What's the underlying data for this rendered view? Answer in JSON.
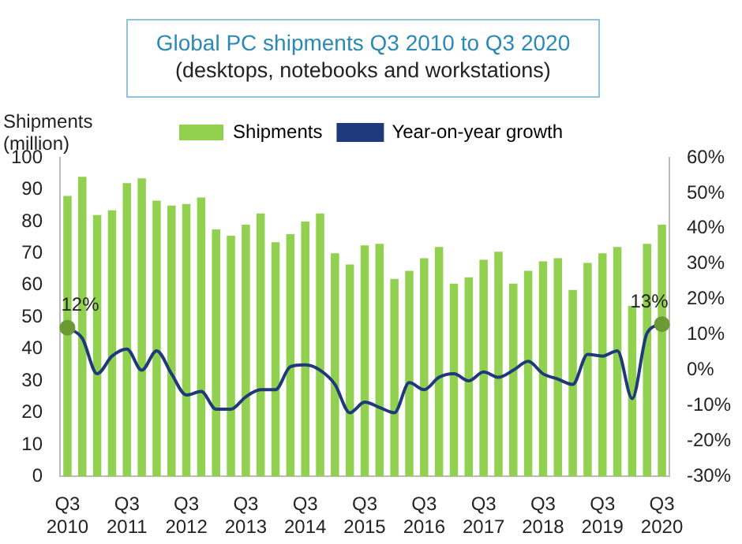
{
  "chart_data": {
    "type": "bar",
    "title": "Global PC shipments Q3 2010 to Q3 2020",
    "subtitle": "(desktops, notebooks and workstations)",
    "ylabel": "Shipments (million)",
    "categories": [
      "Q3\n2010",
      null,
      null,
      null,
      "Q3\n2011",
      null,
      null,
      null,
      "Q3\n2012",
      null,
      null,
      null,
      "Q3\n2013",
      null,
      null,
      null,
      "Q3\n2014",
      null,
      null,
      null,
      "Q3\n2015",
      null,
      null,
      null,
      "Q3\n2016",
      null,
      null,
      null,
      "Q3\n2017",
      null,
      null,
      null,
      "Q3\n2018",
      null,
      null,
      null,
      "Q3\n2019",
      null,
      null,
      null,
      "Q3\n2020"
    ],
    "series": [
      {
        "name": "Shipments",
        "color": "#92d050",
        "values": [
          88,
          94,
          82,
          83.5,
          92,
          93.5,
          86.5,
          85,
          85.5,
          87.5,
          77.5,
          75.5,
          79,
          82.5,
          73.5,
          76,
          80,
          82.5,
          70,
          66.5,
          72.5,
          73,
          62,
          64.5,
          68.5,
          72,
          60.5,
          62.5,
          68,
          70.5,
          60.5,
          64.5,
          67.5,
          68.5,
          58.5,
          67,
          70,
          72,
          53.5,
          73,
          79
        ]
      },
      {
        "name": "Year-on-year growth",
        "type": "line",
        "axis": "y2",
        "color": "#1f3a7a",
        "values": [
          12,
          9,
          -1,
          4,
          6,
          0,
          5.5,
          -1,
          -7,
          -6,
          -11,
          -11,
          -7.5,
          -5.5,
          -5.5,
          1,
          1.5,
          0,
          -4,
          -12,
          -9,
          -10.5,
          -12,
          -3.5,
          -5.5,
          -2,
          -1,
          -3,
          -0.5,
          -2,
          0,
          2.5,
          -1,
          -2.5,
          -4,
          4.5,
          4,
          5.5,
          -8,
          10.5,
          13
        ]
      }
    ],
    "ylim": [
      0,
      100
    ],
    "yticks": [
      0,
      10,
      20,
      30,
      40,
      50,
      60,
      70,
      80,
      90,
      100
    ],
    "y2lim": [
      -30,
      60
    ],
    "y2ticks": [
      {
        "value": -30,
        "label": "-30%"
      },
      {
        "value": -20,
        "label": "-20%"
      },
      {
        "value": -10,
        "label": "-10%"
      },
      {
        "value": 0,
        "label": "0%"
      },
      {
        "value": 10,
        "label": "10%"
      },
      {
        "value": 20,
        "label": "20%"
      },
      {
        "value": 30,
        "label": "30%"
      },
      {
        "value": 40,
        "label": "40%"
      },
      {
        "value": 50,
        "label": "50%"
      },
      {
        "value": 60,
        "label": "60%"
      }
    ],
    "annotations": [
      "12%",
      "13%"
    ],
    "legend": "top",
    "marker": "none"
  }
}
